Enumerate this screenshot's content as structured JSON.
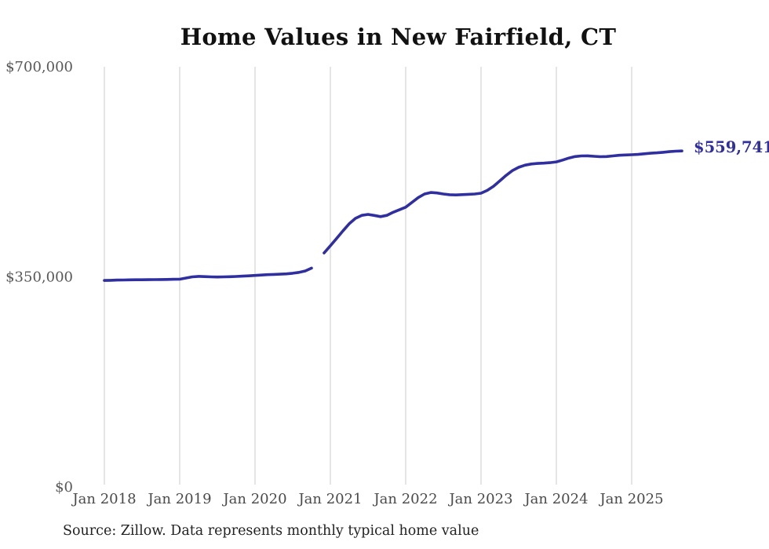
{
  "chart": {
    "title": "Home Values in New Fairfield, CT",
    "latest_value_label": "$559,741",
    "source_note": "Source: Zillow. Data represents monthly typical home value",
    "colors": {
      "line": "#2f2f9f",
      "annotation_text": "#2f2f9f",
      "grid": "#cbcbcb",
      "y_tick_text": "#595959",
      "x_tick_text": "#4a4a4a",
      "title_text": "#111111",
      "source_text": "#222222"
    }
  },
  "chart_data": {
    "type": "line",
    "title": "Home Values in New Fairfield, CT",
    "xlabel": "",
    "ylabel": "",
    "x_frequency": "monthly",
    "x_start_month": "2018-01",
    "x_end_month": "2025-09",
    "ylim": [
      0,
      700000
    ],
    "grid": "vertical-only",
    "legend": "none",
    "data_gap_month": "2020-11",
    "y_ticks": [
      {
        "label": "$700,000",
        "value": 700000
      },
      {
        "label": "$350,000",
        "value": 350000
      },
      {
        "label": "$0",
        "value": 0
      }
    ],
    "x_ticks": [
      {
        "label": "Jan 2018",
        "month_index": 0
      },
      {
        "label": "Jan 2019",
        "month_index": 12
      },
      {
        "label": "Jan 2020",
        "month_index": 24
      },
      {
        "label": "Jan 2021",
        "month_index": 36
      },
      {
        "label": "Jan 2022",
        "month_index": 48
      },
      {
        "label": "Jan 2023",
        "month_index": 60
      },
      {
        "label": "Jan 2024",
        "month_index": 72
      },
      {
        "label": "Jan 2025",
        "month_index": 84
      }
    ],
    "annotation": {
      "label": "$559,741",
      "value": 559741,
      "position": "line-end"
    },
    "series": [
      {
        "name": "Monthly typical home value (USD)",
        "values": [
          344000,
          344300,
          344600,
          344800,
          345000,
          345100,
          345200,
          345300,
          345400,
          345500,
          345700,
          345900,
          346100,
          348000,
          350000,
          350800,
          350400,
          350000,
          349800,
          350000,
          350300,
          350700,
          351200,
          351700,
          352300,
          353000,
          353600,
          354100,
          354500,
          355000,
          356000,
          357500,
          359800,
          364500,
          null,
          389800,
          401800,
          414000,
          426500,
          438500,
          447500,
          452500,
          454000,
          452300,
          450300,
          452500,
          457500,
          461800,
          466000,
          474000,
          482000,
          488000,
          490500,
          489800,
          488000,
          486800,
          486500,
          487000,
          487500,
          488000,
          489300,
          494000,
          501000,
          510000,
          519000,
          527000,
          532500,
          536000,
          538000,
          539000,
          539500,
          540200,
          541500,
          544500,
          548000,
          550500,
          551500,
          551600,
          550800,
          550200,
          550500,
          551500,
          552500,
          553000,
          553500,
          554000,
          555000,
          556000,
          556600,
          557500,
          558500,
          559300,
          559741
        ]
      }
    ]
  }
}
